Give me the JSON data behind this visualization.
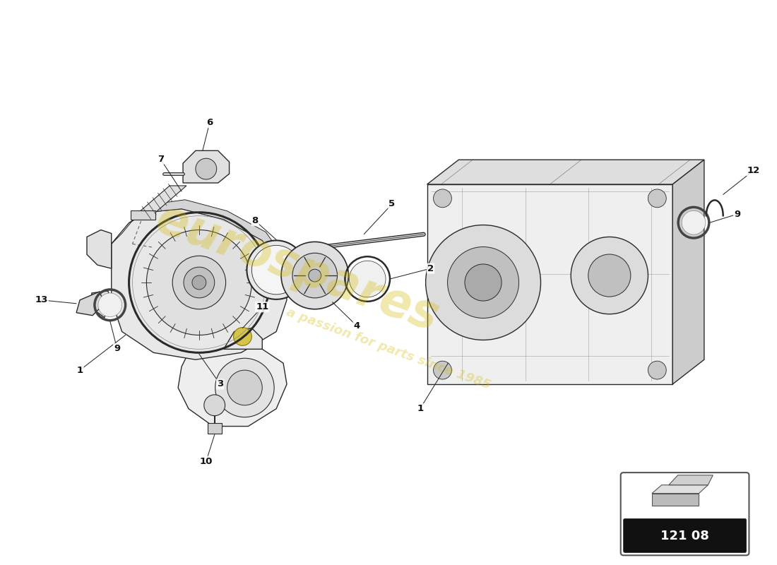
{
  "bg_color": "#ffffff",
  "watermark_text": "eurospares",
  "watermark_subtext": "a passion for parts since 1985",
  "watermark_color": "#d4b800",
  "watermark_alpha": 0.32,
  "badge_number": "121 08",
  "line_color": "#2a2a2a",
  "fill_light": "#f0f0f0",
  "fill_mid": "#d8d8d8",
  "fill_dark": "#aaaaaa",
  "label_fontsize": 9.5,
  "watermark_fontsize": 48,
  "watermark_sub_fontsize": 13
}
